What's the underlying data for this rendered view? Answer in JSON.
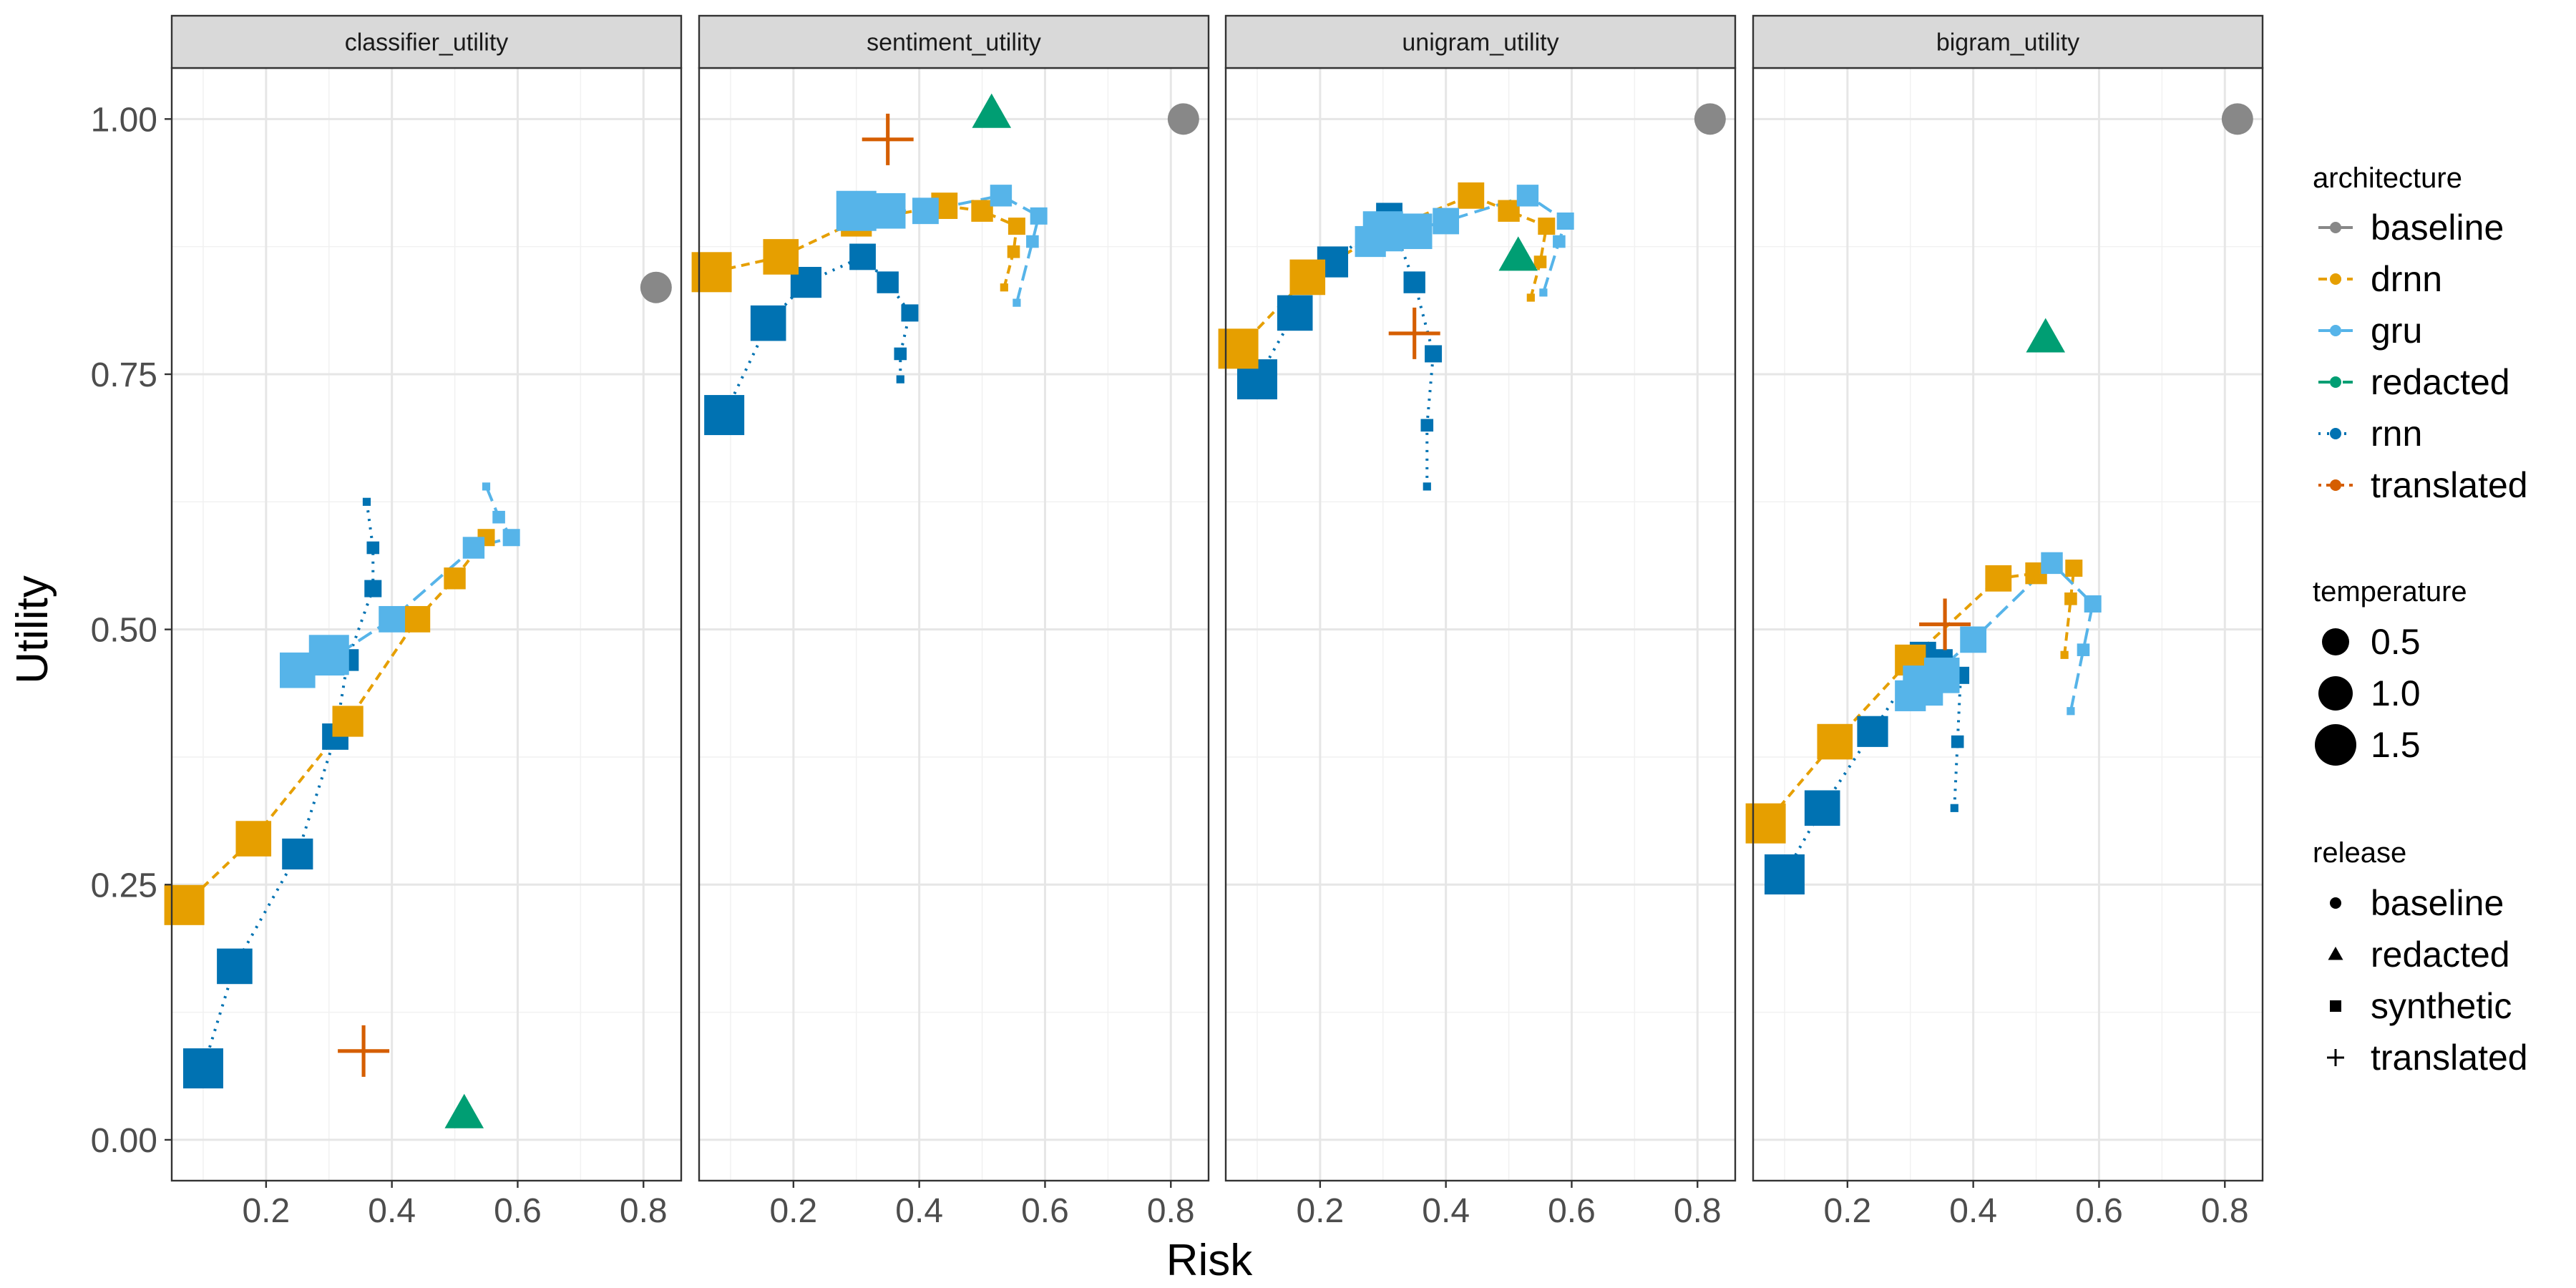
{
  "chart_data": {
    "type": "scatter",
    "xlabel": "Risk",
    "ylabel": "Utility",
    "xlim": [
      0.05,
      0.86
    ],
    "ylim": [
      -0.04,
      1.05
    ],
    "x_ticks": [
      0.2,
      0.4,
      0.6,
      0.8
    ],
    "x_tick_labels": [
      "0.2",
      "0.4",
      "0.6",
      "0.8"
    ],
    "y_ticks": [
      0.0,
      0.25,
      0.5,
      0.75,
      1.0
    ],
    "y_tick_labels": [
      "0.00",
      "0.25",
      "0.50",
      "0.75",
      "1.00"
    ],
    "grid": true,
    "panels": [
      "classifier_utility",
      "sentiment_utility",
      "unigram_utility",
      "bigram_utility"
    ],
    "legend_position": "right",
    "legend": {
      "architecture": {
        "title": "architecture",
        "entries": [
          {
            "label": "baseline",
            "color": "#888888",
            "dash": "solid"
          },
          {
            "label": "drnn",
            "color": "#E69F00",
            "dash": "dashed"
          },
          {
            "label": "gru",
            "color": "#56B4E9",
            "dash": "longdash"
          },
          {
            "label": "redacted",
            "color": "#009E73",
            "dash": "dashdot"
          },
          {
            "label": "rnn",
            "color": "#0072B2",
            "dash": "dotted"
          },
          {
            "label": "translated",
            "color": "#D55E00",
            "dash": "dotdash"
          }
        ]
      },
      "temperature": {
        "title": "temperature",
        "entries": [
          {
            "label": "0.5",
            "value": 0.5
          },
          {
            "label": "1.0",
            "value": 1.0
          },
          {
            "label": "1.5",
            "value": 1.5
          }
        ]
      },
      "release": {
        "title": "release",
        "entries": [
          {
            "label": "baseline",
            "shape": "circle"
          },
          {
            "label": "redacted",
            "shape": "triangle"
          },
          {
            "label": "synthetic",
            "shape": "square"
          },
          {
            "label": "translated",
            "shape": "plus"
          }
        ]
      }
    },
    "synthetic_series": [
      {
        "name": "drnn",
        "temperature": [
          0.1,
          0.3,
          0.5,
          0.7,
          0.9,
          1.1,
          1.3,
          1.5
        ],
        "panels": {
          "classifier_utility": {
            "risk": [
              0.55,
              0.55,
              0.55,
              0.5,
              0.44,
              0.33,
              0.18,
              0.07
            ],
            "utility": [
              0.59,
              0.59,
              0.59,
              0.55,
              0.51,
              0.41,
              0.295,
              0.23
            ]
          },
          "sentiment_utility": {
            "risk": [
              0.535,
              0.55,
              0.555,
              0.5,
              0.44,
              0.3,
              0.18,
              0.07
            ],
            "utility": [
              0.835,
              0.87,
              0.895,
              0.91,
              0.915,
              0.9,
              0.865,
              0.85
            ]
          },
          "unigram_utility": {
            "risk": [
              0.535,
              0.55,
              0.56,
              0.5,
              0.44,
              0.3,
              0.18,
              0.07
            ],
            "utility": [
              0.825,
              0.86,
              0.895,
              0.91,
              0.925,
              0.89,
              0.845,
              0.775
            ]
          },
          "bigram_utility": {
            "risk": [
              0.545,
              0.555,
              0.56,
              0.5,
              0.44,
              0.3,
              0.18,
              0.07
            ],
            "utility": [
              0.475,
              0.53,
              0.56,
              0.555,
              0.55,
              0.47,
              0.39,
              0.31
            ]
          }
        }
      },
      {
        "name": "gru",
        "temperature": [
          0.1,
          0.3,
          0.5,
          0.7,
          0.9,
          1.1,
          1.3,
          1.5
        ],
        "panels": {
          "classifier_utility": {
            "risk": [
              0.55,
              0.57,
              0.59,
              0.53,
              0.4,
              0.3,
              0.25,
              0.3
            ],
            "utility": [
              0.64,
              0.61,
              0.59,
              0.58,
              0.51,
              0.47,
              0.46,
              0.475
            ]
          },
          "sentiment_utility": {
            "risk": [
              0.555,
              0.58,
              0.59,
              0.53,
              0.41,
              0.3,
              0.35,
              0.3
            ],
            "utility": [
              0.82,
              0.88,
              0.905,
              0.925,
              0.91,
              0.91,
              0.91,
              0.91
            ]
          },
          "unigram_utility": {
            "risk": [
              0.555,
              0.58,
              0.59,
              0.53,
              0.4,
              0.28,
              0.35,
              0.3
            ],
            "utility": [
              0.83,
              0.88,
              0.9,
              0.925,
              0.9,
              0.88,
              0.89,
              0.89
            ]
          },
          "bigram_utility": {
            "risk": [
              0.555,
              0.575,
              0.59,
              0.525,
              0.4,
              0.3,
              0.35,
              0.32
            ],
            "utility": [
              0.42,
              0.48,
              0.525,
              0.565,
              0.49,
              0.435,
              0.455,
              0.445
            ]
          }
        }
      },
      {
        "name": "rnn",
        "temperature": [
          0.1,
          0.3,
          0.5,
          0.7,
          0.9,
          1.1,
          1.3,
          1.5
        ],
        "panels": {
          "classifier_utility": {
            "risk": [
              0.36,
              0.37,
              0.37,
              0.33,
              0.31,
              0.25,
              0.15,
              0.1
            ],
            "utility": [
              0.625,
              0.58,
              0.54,
              0.47,
              0.395,
              0.28,
              0.17,
              0.07
            ]
          },
          "sentiment_utility": {
            "risk": [
              0.37,
              0.37,
              0.385,
              0.35,
              0.31,
              0.22,
              0.16,
              0.09
            ],
            "utility": [
              0.745,
              0.77,
              0.81,
              0.84,
              0.865,
              0.84,
              0.8,
              0.71
            ]
          },
          "unigram_utility": {
            "risk": [
              0.37,
              0.37,
              0.38,
              0.35,
              0.31,
              0.22,
              0.16,
              0.1
            ],
            "utility": [
              0.64,
              0.7,
              0.77,
              0.84,
              0.905,
              0.86,
              0.81,
              0.745
            ]
          },
          "bigram_utility": {
            "risk": [
              0.37,
              0.375,
              0.38,
              0.35,
              0.32,
              0.24,
              0.16,
              0.1
            ],
            "utility": [
              0.325,
              0.39,
              0.455,
              0.47,
              0.475,
              0.4,
              0.325,
              0.26
            ]
          }
        }
      }
    ],
    "reference_points": [
      {
        "release": "baseline",
        "architecture": "baseline",
        "panels": {
          "classifier_utility": {
            "risk": 0.82,
            "utility": 0.835
          },
          "sentiment_utility": {
            "risk": 0.82,
            "utility": 1.0
          },
          "unigram_utility": {
            "risk": 0.82,
            "utility": 1.0
          },
          "bigram_utility": {
            "risk": 0.82,
            "utility": 1.0
          }
        }
      },
      {
        "release": "redacted",
        "architecture": "redacted",
        "panels": {
          "classifier_utility": {
            "risk": 0.515,
            "utility": 0.025
          },
          "sentiment_utility": {
            "risk": 0.515,
            "utility": 1.005
          },
          "unigram_utility": {
            "risk": 0.515,
            "utility": 0.865
          },
          "bigram_utility": {
            "risk": 0.515,
            "utility": 0.785
          }
        }
      },
      {
        "release": "translated",
        "architecture": "translated",
        "panels": {
          "classifier_utility": {
            "risk": 0.355,
            "utility": 0.087
          },
          "sentiment_utility": {
            "risk": 0.35,
            "utility": 0.98
          },
          "unigram_utility": {
            "risk": 0.35,
            "utility": 0.79
          },
          "bigram_utility": {
            "risk": 0.355,
            "utility": 0.505
          }
        }
      }
    ]
  }
}
